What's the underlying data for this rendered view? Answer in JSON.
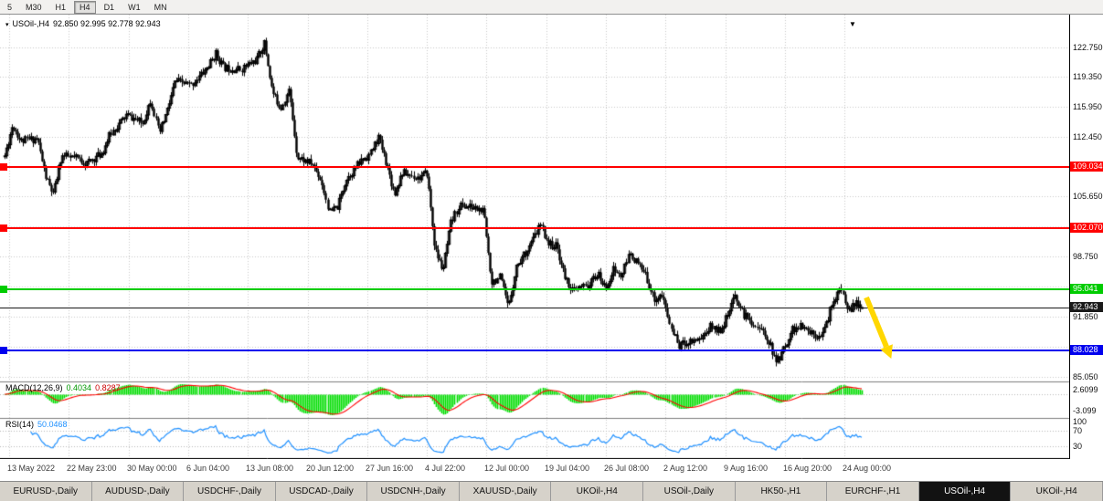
{
  "toolbar": {
    "timeframes": [
      {
        "label": "5",
        "active": false
      },
      {
        "label": "M30",
        "active": false
      },
      {
        "label": "H1",
        "active": false
      },
      {
        "label": "H4",
        "active": true
      },
      {
        "label": "D1",
        "active": false
      },
      {
        "label": "W1",
        "active": false
      },
      {
        "label": "MN",
        "active": false
      }
    ]
  },
  "header": {
    "symbol": "USOil-,H4",
    "ohlc": "92.850 92.995 92.778 92.943"
  },
  "price_axis": {
    "labels": [
      {
        "text": "122.750",
        "price": 122.75
      },
      {
        "text": "119.350",
        "price": 119.35
      },
      {
        "text": "115.950",
        "price": 115.95
      },
      {
        "text": "112.450",
        "price": 112.45
      },
      {
        "text": "105.650",
        "price": 105.65
      },
      {
        "text": "98.750",
        "price": 98.75
      },
      {
        "text": "91.850",
        "price": 91.85
      },
      {
        "text": "85.050",
        "price": 85.05
      }
    ],
    "grid": [
      122.75,
      119.35,
      115.95,
      112.45,
      109.05,
      105.65,
      102.25,
      98.75,
      95.35,
      91.85,
      88.45,
      85.05
    ]
  },
  "hlines": [
    {
      "label": "109.034",
      "price": 109.034,
      "color": "#ff0000",
      "thickness": 2
    },
    {
      "label": "102.070",
      "price": 102.07,
      "color": "#ff0000",
      "thickness": 2
    },
    {
      "label": "95.041",
      "price": 95.041,
      "color": "#00cc00",
      "thickness": 2
    },
    {
      "label": "92.943",
      "price": 92.943,
      "color": "#1a1a1a",
      "thickness": 1
    },
    {
      "label": "88.028",
      "price": 88.028,
      "color": "#0000ee",
      "thickness": 2
    }
  ],
  "indicators": {
    "macd": {
      "name": "MACD(12,26,9)",
      "value_main": "0.4034",
      "value_signal": "0.8287",
      "axis_labels": [
        "2.6099",
        "-3.099"
      ],
      "colors": {
        "hist": "#00dd00",
        "signal": "#ff0000"
      }
    },
    "rsi": {
      "name": "RSI(14)",
      "value": "50.0468",
      "axis_labels": [
        "100",
        "70",
        "30"
      ],
      "levels": [
        70,
        30
      ],
      "color": "#1e90ff"
    }
  },
  "time_axis": {
    "labels": [
      "13 May 2022",
      "22 May 23:00",
      "30 May 00:00",
      "6 Jun 04:00",
      "13 Jun 08:00",
      "20 Jun 12:00",
      "27 Jun 16:00",
      "4 Jul 22:00",
      "12 Jul 00:00",
      "19 Jul 04:00",
      "26 Jul 08:00",
      "2 Aug 12:00",
      "9 Aug 16:00",
      "16 Aug 20:00",
      "24 Aug 00:00"
    ]
  },
  "tabs": [
    {
      "label": "EURUSD-,Daily",
      "active": false
    },
    {
      "label": "AUDUSD-,Daily",
      "active": false
    },
    {
      "label": "USDCHF-,Daily",
      "active": false
    },
    {
      "label": "USDCAD-,Daily",
      "active": false
    },
    {
      "label": "USDCNH-,Daily",
      "active": false
    },
    {
      "label": "XAUUSD-,Daily",
      "active": false
    },
    {
      "label": "UKOil-,H4",
      "active": false
    },
    {
      "label": "USOil-,Daily",
      "active": false
    },
    {
      "label": "HK50-,H1",
      "active": false
    },
    {
      "label": "EURCHF-,H1",
      "active": false
    },
    {
      "label": "USOil-,H4",
      "active": true
    },
    {
      "label": "UKOil-,H4",
      "active": false
    }
  ],
  "annotations": {
    "sell_arrow": {
      "color": "#ffd700",
      "shape": "arrow-down-right"
    }
  },
  "chart_data": {
    "type": "candlestick",
    "symbol": "USOil-",
    "timeframe": "H4",
    "ohlc_current": {
      "open": 92.85,
      "high": 92.995,
      "low": 92.778,
      "close": 92.943
    },
    "y_range": [
      84.48,
      126.38
    ],
    "num_candles": 460,
    "indicator_params": {
      "macd": [
        12,
        26,
        9
      ],
      "rsi": 14
    },
    "price_path_anchors": [
      [
        0,
        110.3
      ],
      [
        1,
        113.9
      ],
      [
        2,
        112.0
      ],
      [
        4,
        112.3
      ],
      [
        5,
        108.0
      ],
      [
        6,
        105.8
      ],
      [
        7,
        110.3
      ],
      [
        9,
        110.0
      ],
      [
        10,
        109.4
      ],
      [
        12,
        110.6
      ],
      [
        13,
        112.8
      ],
      [
        15,
        115.0
      ],
      [
        17,
        114.0
      ],
      [
        18,
        116.8
      ],
      [
        19,
        112.8
      ],
      [
        20,
        115.5
      ],
      [
        21,
        118.9
      ],
      [
        23,
        118.4
      ],
      [
        25,
        120.5
      ],
      [
        26,
        122.0
      ],
      [
        27,
        120.4
      ],
      [
        29,
        120.2
      ],
      [
        31,
        121.3
      ],
      [
        32,
        123.2
      ],
      [
        33,
        117.6
      ],
      [
        34,
        115.8
      ],
      [
        35,
        117.8
      ],
      [
        36,
        110.2
      ],
      [
        38,
        109.3
      ],
      [
        39,
        107.5
      ],
      [
        40,
        103.8
      ],
      [
        41,
        104.5
      ],
      [
        42,
        107.6
      ],
      [
        44,
        109.8
      ],
      [
        45,
        110.5
      ],
      [
        46,
        112.5
      ],
      [
        47,
        109.5
      ],
      [
        48,
        105.9
      ],
      [
        49,
        108.4
      ],
      [
        51,
        107.8
      ],
      [
        52,
        108.3
      ],
      [
        53,
        99.6
      ],
      [
        54,
        97.2
      ],
      [
        55,
        102.6
      ],
      [
        56,
        104.7
      ],
      [
        58,
        104.3
      ],
      [
        59,
        103.9
      ],
      [
        60,
        95.9
      ],
      [
        61,
        96.4
      ],
      [
        62,
        92.8
      ],
      [
        63,
        97.6
      ],
      [
        65,
        100.5
      ],
      [
        66,
        102.4
      ],
      [
        67,
        100.2
      ],
      [
        68,
        99.9
      ],
      [
        69,
        96.4
      ],
      [
        70,
        94.8
      ],
      [
        72,
        95.6
      ],
      [
        73,
        96.8
      ],
      [
        74,
        95.1
      ],
      [
        75,
        97.3
      ],
      [
        76,
        96.5
      ],
      [
        77,
        99.2
      ],
      [
        79,
        96.5
      ],
      [
        80,
        93.9
      ],
      [
        81,
        94.3
      ],
      [
        82,
        90.8
      ],
      [
        83,
        88.6
      ],
      [
        84,
        89.0
      ],
      [
        86,
        89.6
      ],
      [
        87,
        90.8
      ],
      [
        88,
        90.3
      ],
      [
        89,
        91.9
      ],
      [
        90,
        94.3
      ],
      [
        91,
        92.2
      ],
      [
        93,
        90.5
      ],
      [
        94,
        89.4
      ],
      [
        95,
        86.6
      ],
      [
        96,
        88.2
      ],
      [
        97,
        90.4
      ],
      [
        98,
        90.7
      ],
      [
        100,
        89.8
      ],
      [
        101,
        90.3
      ],
      [
        102,
        93.6
      ],
      [
        103,
        95.0
      ],
      [
        104,
        92.6
      ],
      [
        105,
        93.4
      ],
      [
        105.6,
        92.94
      ]
    ]
  }
}
